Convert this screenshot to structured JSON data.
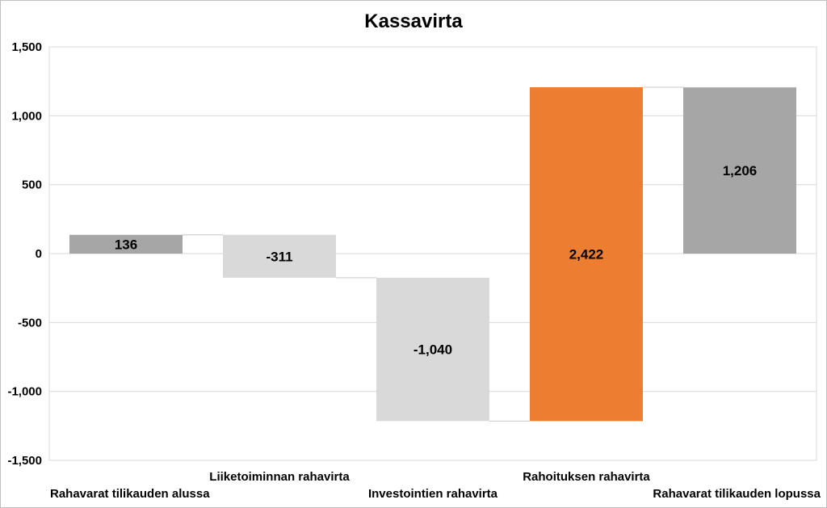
{
  "chart_data": {
    "type": "bar",
    "subtype": "waterfall",
    "title": "Kassavirta",
    "xlabel": "",
    "ylabel": "",
    "ylim": [
      -1500,
      1500
    ],
    "yticks": [
      1500,
      1000,
      500,
      0,
      -500,
      -1000,
      -1500
    ],
    "ytick_labels": [
      "1,500",
      "1,000",
      "500",
      "0",
      "-500",
      "-1,000",
      "-1,500"
    ],
    "grid": true,
    "legend": "none",
    "categories": [
      "Rahavarat tilikauden alussa",
      "Liiketoiminnan rahavirta",
      "Investointien rahavirta",
      "Rahoituksen rahavirta",
      "Rahavarat tilikauden lopussa"
    ],
    "values": [
      136,
      -311,
      -1040,
      2422,
      1206
    ],
    "value_labels": [
      "136",
      "-311",
      "-1,040",
      "2,422",
      "1,206"
    ],
    "bar_kind": [
      "total",
      "delta",
      "delta",
      "delta",
      "total"
    ],
    "colors": [
      "#a6a6a6",
      "#d9d9d9",
      "#d9d9d9",
      "#ed7d31",
      "#a6a6a6"
    ]
  }
}
